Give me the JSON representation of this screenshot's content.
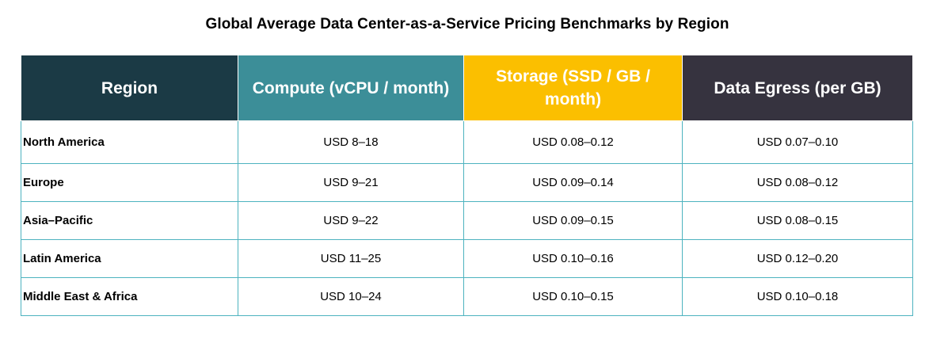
{
  "title": "Global Average Data Center-as-a-Service  Pricing Benchmarks by Region",
  "colors": {
    "header_region": "#1b3a45",
    "header_compute": "#3c8e98",
    "header_storage": "#fbbf00",
    "header_egress": "#36333f",
    "cell_border": "#4db3bf"
  },
  "table": {
    "headers": [
      "Region",
      "Compute (vCPU / month)",
      "Storage (SSD / GB / month)",
      "Data Egress (per GB)"
    ],
    "rows": [
      [
        "North America",
        "USD 8–18",
        "USD 0.08–0.12",
        "USD 0.07–0.10"
      ],
      [
        "Europe",
        "USD 9–21",
        "USD 0.09–0.14",
        "USD 0.08–0.12"
      ],
      [
        "Asia–Pacific",
        "USD 9–22",
        "USD 0.09–0.15",
        "USD 0.08–0.15"
      ],
      [
        "Latin America",
        "USD 11–25",
        "USD 0.10–0.16",
        "USD 0.12–0.20"
      ],
      [
        "Middle East & Africa",
        "USD 10–24",
        "USD 0.10–0.15",
        "USD 0.10–0.18"
      ]
    ]
  }
}
